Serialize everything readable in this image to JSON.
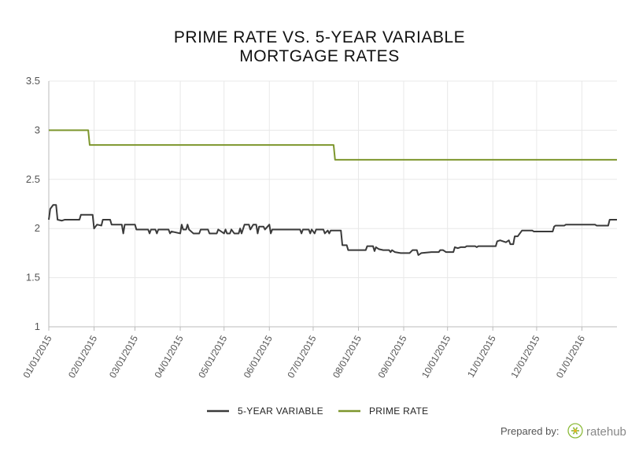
{
  "chart_data": {
    "type": "line",
    "title_lines": [
      "PRIME RATE VS. 5-YEAR VARIABLE",
      "MORTGAGE RATES"
    ],
    "ylim": [
      1,
      3.5
    ],
    "yticks": [
      "1",
      "1.5",
      "2",
      "2.5",
      "3",
      "3.5"
    ],
    "grid": true,
    "legend_position": "bottom-center",
    "x_domain": [
      "2015-01-01",
      "2016-01-25"
    ],
    "xtick_labels": [
      "01/01/2015",
      "02/01/2015",
      "03/01/2015",
      "04/01/2015",
      "05/01/2015",
      "06/01/2015",
      "07/01/2015",
      "08/01/2015",
      "09/01/2015",
      "10/01/2015",
      "11/01/2015",
      "12/01/2015",
      "01/01/2016"
    ],
    "xtick_dates": [
      "2015-01-01",
      "2015-02-01",
      "2015-03-01",
      "2015-04-01",
      "2015-05-01",
      "2015-06-01",
      "2015-07-01",
      "2015-08-01",
      "2015-09-01",
      "2015-10-01",
      "2015-11-01",
      "2015-12-01",
      "2016-01-01"
    ],
    "series": [
      {
        "name": "5-YEAR VARIABLE",
        "color": "#3a3a3a",
        "points": [
          [
            "2015-01-01",
            2.09
          ],
          [
            "2015-01-02",
            2.2
          ],
          [
            "2015-01-04",
            2.24
          ],
          [
            "2015-01-06",
            2.24
          ],
          [
            "2015-01-07",
            2.09
          ],
          [
            "2015-01-10",
            2.08
          ],
          [
            "2015-01-12",
            2.09
          ],
          [
            "2015-01-22",
            2.09
          ],
          [
            "2015-01-23",
            2.14
          ],
          [
            "2015-01-31",
            2.14
          ],
          [
            "2015-02-01",
            2.0
          ],
          [
            "2015-02-03",
            2.04
          ],
          [
            "2015-02-06",
            2.03
          ],
          [
            "2015-02-07",
            2.09
          ],
          [
            "2015-02-12",
            2.09
          ],
          [
            "2015-02-13",
            2.04
          ],
          [
            "2015-02-20",
            2.04
          ],
          [
            "2015-02-21",
            1.95
          ],
          [
            "2015-02-22",
            2.04
          ],
          [
            "2015-03-01",
            2.04
          ],
          [
            "2015-03-02",
            1.99
          ],
          [
            "2015-03-10",
            1.99
          ],
          [
            "2015-03-11",
            1.95
          ],
          [
            "2015-03-12",
            1.99
          ],
          [
            "2015-03-15",
            1.99
          ],
          [
            "2015-03-16",
            1.95
          ],
          [
            "2015-03-17",
            1.99
          ],
          [
            "2015-03-24",
            1.99
          ],
          [
            "2015-03-25",
            1.95
          ],
          [
            "2015-03-26",
            1.97
          ],
          [
            "2015-04-01",
            1.95
          ],
          [
            "2015-04-02",
            2.04
          ],
          [
            "2015-04-03",
            1.99
          ],
          [
            "2015-04-05",
            1.99
          ],
          [
            "2015-04-06",
            2.04
          ],
          [
            "2015-04-07",
            1.99
          ],
          [
            "2015-04-10",
            1.95
          ],
          [
            "2015-04-14",
            1.95
          ],
          [
            "2015-04-15",
            1.99
          ],
          [
            "2015-04-20",
            1.99
          ],
          [
            "2015-04-21",
            1.95
          ],
          [
            "2015-04-26",
            1.95
          ],
          [
            "2015-04-27",
            1.99
          ],
          [
            "2015-05-01",
            1.95
          ],
          [
            "2015-05-02",
            1.99
          ],
          [
            "2015-05-03",
            1.95
          ],
          [
            "2015-05-05",
            1.95
          ],
          [
            "2015-05-06",
            1.99
          ],
          [
            "2015-05-08",
            1.95
          ],
          [
            "2015-05-11",
            1.95
          ],
          [
            "2015-05-12",
            2.0
          ],
          [
            "2015-05-13",
            1.95
          ],
          [
            "2015-05-15",
            2.04
          ],
          [
            "2015-05-18",
            2.04
          ],
          [
            "2015-05-19",
            1.99
          ],
          [
            "2015-05-21",
            2.04
          ],
          [
            "2015-05-23",
            2.04
          ],
          [
            "2015-05-24",
            1.95
          ],
          [
            "2015-05-25",
            2.02
          ],
          [
            "2015-05-28",
            2.02
          ],
          [
            "2015-05-29",
            1.99
          ],
          [
            "2015-06-01",
            2.04
          ],
          [
            "2015-06-02",
            1.95
          ],
          [
            "2015-06-03",
            1.99
          ],
          [
            "2015-06-22",
            1.99
          ],
          [
            "2015-06-23",
            1.95
          ],
          [
            "2015-06-24",
            1.99
          ],
          [
            "2015-06-28",
            1.99
          ],
          [
            "2015-06-29",
            1.95
          ],
          [
            "2015-06-30",
            1.99
          ],
          [
            "2015-07-02",
            1.95
          ],
          [
            "2015-07-03",
            1.99
          ],
          [
            "2015-07-08",
            1.99
          ],
          [
            "2015-07-09",
            1.95
          ],
          [
            "2015-07-11",
            1.98
          ],
          [
            "2015-07-12",
            1.95
          ],
          [
            "2015-07-13",
            1.98
          ],
          [
            "2015-07-20",
            1.98
          ],
          [
            "2015-07-21",
            1.83
          ],
          [
            "2015-07-24",
            1.83
          ],
          [
            "2015-07-25",
            1.78
          ],
          [
            "2015-08-06",
            1.78
          ],
          [
            "2015-08-07",
            1.82
          ],
          [
            "2015-08-11",
            1.82
          ],
          [
            "2015-08-12",
            1.77
          ],
          [
            "2015-08-13",
            1.81
          ],
          [
            "2015-08-15",
            1.79
          ],
          [
            "2015-08-18",
            1.78
          ],
          [
            "2015-08-22",
            1.78
          ],
          [
            "2015-08-23",
            1.76
          ],
          [
            "2015-08-24",
            1.78
          ],
          [
            "2015-08-26",
            1.76
          ],
          [
            "2015-08-30",
            1.75
          ],
          [
            "2015-09-05",
            1.75
          ],
          [
            "2015-09-07",
            1.78
          ],
          [
            "2015-09-10",
            1.78
          ],
          [
            "2015-09-11",
            1.73
          ],
          [
            "2015-09-13",
            1.75
          ],
          [
            "2015-09-20",
            1.76
          ],
          [
            "2015-09-25",
            1.76
          ],
          [
            "2015-09-26",
            1.78
          ],
          [
            "2015-09-28",
            1.78
          ],
          [
            "2015-09-30",
            1.76
          ],
          [
            "2015-10-05",
            1.76
          ],
          [
            "2015-10-06",
            1.81
          ],
          [
            "2015-10-08",
            1.8
          ],
          [
            "2015-10-10",
            1.81
          ],
          [
            "2015-10-13",
            1.81
          ],
          [
            "2015-10-14",
            1.82
          ],
          [
            "2015-10-20",
            1.82
          ],
          [
            "2015-10-21",
            1.81
          ],
          [
            "2015-10-22",
            1.82
          ],
          [
            "2015-11-03",
            1.82
          ],
          [
            "2015-11-04",
            1.87
          ],
          [
            "2015-11-06",
            1.88
          ],
          [
            "2015-11-10",
            1.86
          ],
          [
            "2015-11-12",
            1.88
          ],
          [
            "2015-11-13",
            1.84
          ],
          [
            "2015-11-15",
            1.84
          ],
          [
            "2015-11-16",
            1.92
          ],
          [
            "2015-11-18",
            1.92
          ],
          [
            "2015-11-20",
            1.96
          ],
          [
            "2015-11-21",
            1.98
          ],
          [
            "2015-11-28",
            1.98
          ],
          [
            "2015-11-29",
            1.97
          ],
          [
            "2015-12-09",
            1.97
          ],
          [
            "2015-12-12",
            1.97
          ],
          [
            "2015-12-13",
            2.02
          ],
          [
            "2015-12-14",
            2.03
          ],
          [
            "2015-12-20",
            2.03
          ],
          [
            "2015-12-21",
            2.04
          ],
          [
            "2016-01-10",
            2.04
          ],
          [
            "2016-01-11",
            2.03
          ],
          [
            "2016-01-19",
            2.03
          ],
          [
            "2016-01-20",
            2.09
          ],
          [
            "2016-01-25",
            2.09
          ]
        ]
      },
      {
        "name": "PRIME RATE",
        "color": "#7d962d",
        "points": [
          [
            "2015-01-01",
            3.0
          ],
          [
            "2015-01-28",
            3.0
          ],
          [
            "2015-01-29",
            2.85
          ],
          [
            "2015-07-15",
            2.85
          ],
          [
            "2015-07-16",
            2.7
          ],
          [
            "2016-01-25",
            2.7
          ]
        ]
      }
    ]
  },
  "credit": {
    "prepared_by": "Prepared by:",
    "brand": "ratehub"
  },
  "colors": {
    "grid": "#e8e8e8",
    "axis": "#bbbbbb",
    "brand_icon": "#8dbb3c"
  }
}
